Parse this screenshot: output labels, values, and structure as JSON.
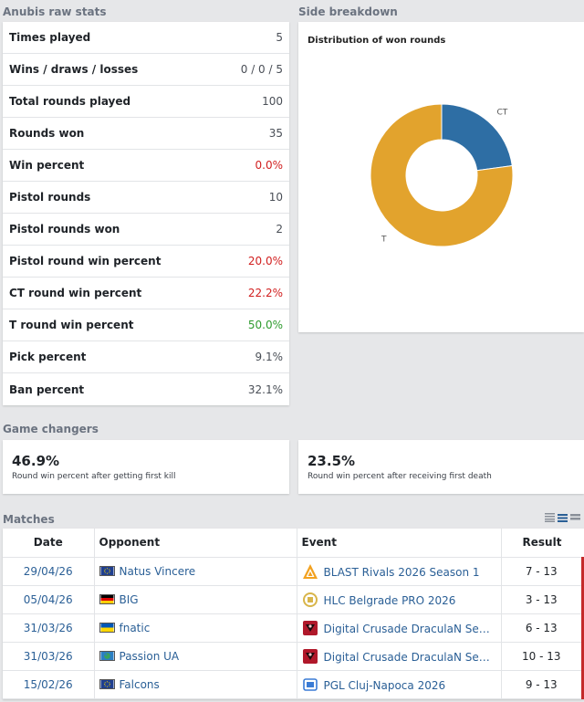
{
  "raw_stats": {
    "title": "Anubis raw stats",
    "rows": [
      {
        "label": "Times played",
        "value": "5",
        "tone": "neutral"
      },
      {
        "label": "Wins / draws / losses",
        "value": "0 / 0 / 5",
        "tone": "neutral"
      },
      {
        "label": "Total rounds played",
        "value": "100",
        "tone": "neutral"
      },
      {
        "label": "Rounds won",
        "value": "35",
        "tone": "neutral"
      },
      {
        "label": "Win percent",
        "value": "0.0%",
        "tone": "red"
      },
      {
        "label": "Pistol rounds",
        "value": "10",
        "tone": "neutral"
      },
      {
        "label": "Pistol rounds won",
        "value": "2",
        "tone": "neutral"
      },
      {
        "label": "Pistol round win percent",
        "value": "20.0%",
        "tone": "red"
      },
      {
        "label": "CT round win percent",
        "value": "22.2%",
        "tone": "red"
      },
      {
        "label": "T round win percent",
        "value": "50.0%",
        "tone": "green"
      },
      {
        "label": "Pick percent",
        "value": "9.1%",
        "tone": "neutral"
      },
      {
        "label": "Ban percent",
        "value": "32.1%",
        "tone": "neutral"
      }
    ]
  },
  "side_breakdown": {
    "title": "Side breakdown",
    "colors": {
      "CT": "#2e6ea4",
      "T": "#e2a32d"
    }
  },
  "chart_data": {
    "type": "pie",
    "title": "Distribution of won rounds",
    "categories": [
      "CT",
      "T"
    ],
    "values": [
      8,
      27
    ]
  },
  "game_changers": {
    "title": "Game changers",
    "cards": [
      {
        "value": "46.9%",
        "desc": "Round win percent after getting first kill"
      },
      {
        "value": "23.5%",
        "desc": "Round win percent after receiving first death"
      }
    ]
  },
  "matches": {
    "title": "Matches",
    "columns": [
      "Date",
      "Opponent",
      "Event",
      "Result"
    ],
    "rows": [
      {
        "date": "29/04/26",
        "opponent": "Natus Vincere",
        "flag": "eu",
        "event": "BLAST Rivals 2026 Season 1",
        "event_icon": "blast-icon",
        "result": "7 - 13"
      },
      {
        "date": "05/04/26",
        "opponent": "BIG",
        "flag": "de",
        "event": "HLC Belgrade PRO 2026",
        "event_icon": "hlc-icon",
        "result": "3 - 13"
      },
      {
        "date": "31/03/26",
        "opponent": "fnatic",
        "flag": "ua",
        "event": "Digital Crusade DraculaN Seaso...",
        "event_icon": "dracula-icon",
        "result": "6 - 13"
      },
      {
        "date": "31/03/26",
        "opponent": "Passion UA",
        "flag": "world",
        "event": "Digital Crusade DraculaN Seaso...",
        "event_icon": "dracula-icon",
        "result": "10 - 13"
      },
      {
        "date": "15/02/26",
        "opponent": "Falcons",
        "flag": "eu",
        "event": "PGL Cluj-Napoca 2026",
        "event_icon": "pgl-icon",
        "result": "9 - 13"
      }
    ]
  }
}
